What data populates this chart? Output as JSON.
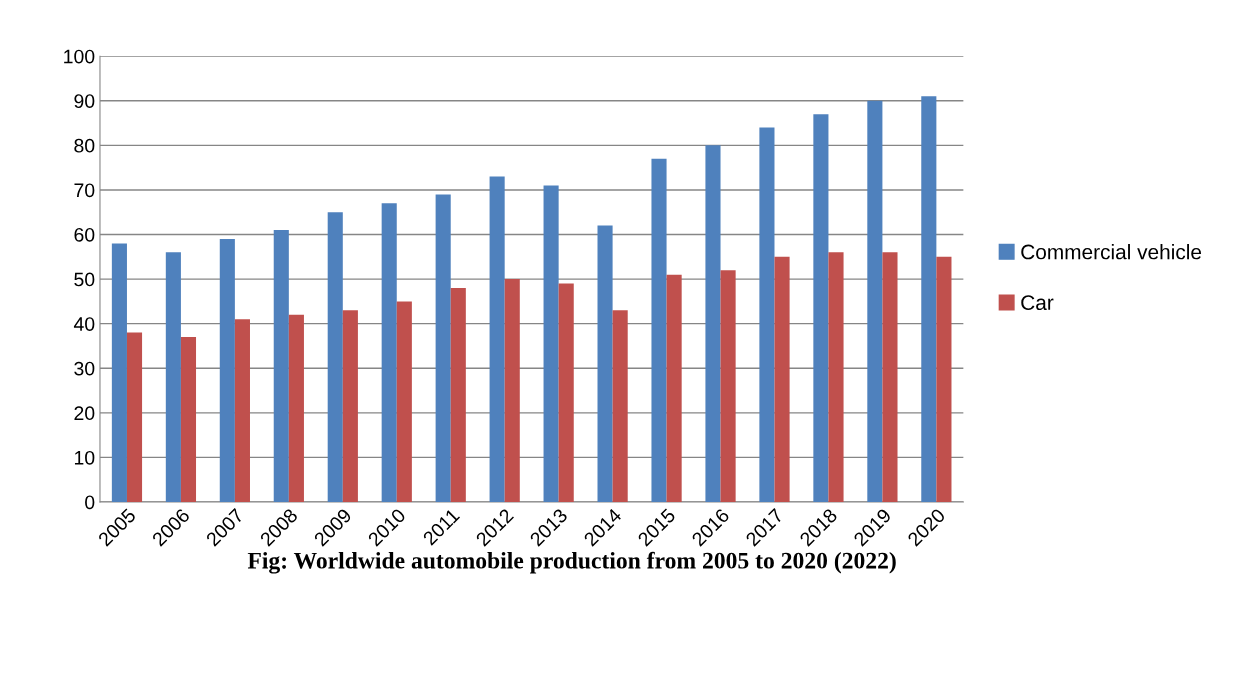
{
  "chart_data": {
    "type": "bar",
    "categories": [
      "2005",
      "2006",
      "2007",
      "2008",
      "2009",
      "2010",
      "2011",
      "2012",
      "2013",
      "2014",
      "2015",
      "2016",
      "2017",
      "2018",
      "2019",
      "2020"
    ],
    "series": [
      {
        "name": "Commercial vehicle",
        "color": "#4f81bd",
        "values": [
          58,
          56,
          59,
          61,
          65,
          67,
          69,
          73,
          71,
          62,
          77,
          80,
          84,
          87,
          90,
          91
        ]
      },
      {
        "name": "Car",
        "color": "#c0504d",
        "values": [
          38,
          37,
          41,
          42,
          43,
          45,
          48,
          50,
          49,
          43,
          51,
          52,
          55,
          56,
          56,
          55
        ]
      }
    ],
    "ylim": [
      0,
      100
    ],
    "yticks": [
      0,
      10,
      20,
      30,
      40,
      50,
      60,
      70,
      80,
      90,
      100
    ],
    "grid": "y",
    "legend": "right",
    "annotations": [
      "Fig: Worldwide automobile production from 2005 to 2020 (2022)"
    ]
  }
}
